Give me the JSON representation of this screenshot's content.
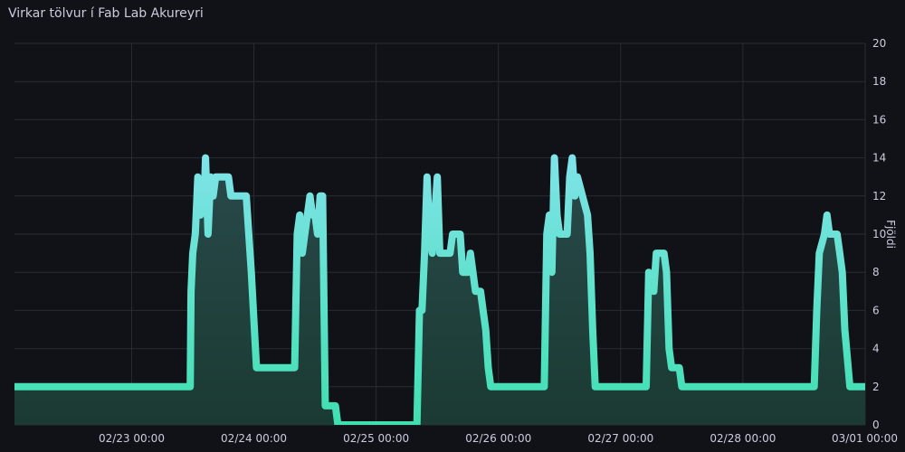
{
  "panel": {
    "title": "Virkar tölvur í Fab Lab Akureyri"
  },
  "colors": {
    "background": "#111217",
    "grid": "#2a2c33",
    "line_top": "#7fe3e8",
    "line_bottom": "#3fe0b0",
    "fill_top": "#284a4a",
    "fill_bottom": "#1b3a33"
  },
  "chart_data": {
    "type": "area",
    "ylabel": "Fjöldi",
    "ylim": [
      0,
      20
    ],
    "yticks": [
      0,
      2,
      4,
      6,
      8,
      10,
      12,
      14,
      16,
      18,
      20
    ],
    "xlim": [
      "2026-02-22T01:00",
      "2026-03-01T00:00"
    ],
    "xticks": [
      {
        "t": "2026-02-23T00:00",
        "label": "02/23 00:00"
      },
      {
        "t": "2026-02-24T00:00",
        "label": "02/24 00:00"
      },
      {
        "t": "2026-02-25T00:00",
        "label": "02/25 00:00"
      },
      {
        "t": "2026-02-26T00:00",
        "label": "02/26 00:00"
      },
      {
        "t": "2026-02-27T00:00",
        "label": "02/27 00:00"
      },
      {
        "t": "2026-02-28T00:00",
        "label": "02/28 00:00"
      },
      {
        "t": "2026-03-01T00:00",
        "label": "03/01 00:00"
      }
    ],
    "grid": true,
    "series": [
      {
        "points": [
          [
            "2026-02-22T01:00",
            2
          ],
          [
            "2026-02-23T11:30",
            2
          ],
          [
            "2026-02-23T11:40",
            7
          ],
          [
            "2026-02-23T12:00",
            9
          ],
          [
            "2026-02-23T12:30",
            10
          ],
          [
            "2026-02-23T13:00",
            13
          ],
          [
            "2026-02-23T13:30",
            11
          ],
          [
            "2026-02-23T14:15",
            12
          ],
          [
            "2026-02-23T14:30",
            14
          ],
          [
            "2026-02-23T15:00",
            10
          ],
          [
            "2026-02-23T15:30",
            13
          ],
          [
            "2026-02-23T16:00",
            12
          ],
          [
            "2026-02-23T16:30",
            13
          ],
          [
            "2026-02-23T19:00",
            13
          ],
          [
            "2026-02-23T19:30",
            12
          ],
          [
            "2026-02-23T22:30",
            12
          ],
          [
            "2026-02-23T23:00",
            10
          ],
          [
            "2026-02-23T23:30",
            8
          ],
          [
            "2026-02-24T00:30",
            3
          ],
          [
            "2026-02-24T08:00",
            3
          ],
          [
            "2026-02-24T08:30",
            10
          ],
          [
            "2026-02-24T09:00",
            11
          ],
          [
            "2026-02-24T09:30",
            9
          ],
          [
            "2026-02-24T10:00",
            10
          ],
          [
            "2026-02-24T11:00",
            12
          ],
          [
            "2026-02-24T11:30",
            11
          ],
          [
            "2026-02-24T12:00",
            11
          ],
          [
            "2026-02-24T12:30",
            10
          ],
          [
            "2026-02-24T13:00",
            12
          ],
          [
            "2026-02-24T13:30",
            12
          ],
          [
            "2026-02-24T14:00",
            1
          ],
          [
            "2026-02-24T16:00",
            1
          ],
          [
            "2026-02-24T16:30",
            0
          ],
          [
            "2026-02-25T08:00",
            0
          ],
          [
            "2026-02-25T08:30",
            6
          ],
          [
            "2026-02-25T09:00",
            6
          ],
          [
            "2026-02-25T09:30",
            9
          ],
          [
            "2026-02-25T10:00",
            13
          ],
          [
            "2026-02-25T10:30",
            10
          ],
          [
            "2026-02-25T11:00",
            9
          ],
          [
            "2026-02-25T12:00",
            13
          ],
          [
            "2026-02-25T12:30",
            9
          ],
          [
            "2026-02-25T14:30",
            9
          ],
          [
            "2026-02-25T15:00",
            10
          ],
          [
            "2026-02-25T16:30",
            10
          ],
          [
            "2026-02-25T17:00",
            8
          ],
          [
            "2026-02-25T18:00",
            8
          ],
          [
            "2026-02-25T18:30",
            9
          ],
          [
            "2026-02-25T19:30",
            7
          ],
          [
            "2026-02-25T20:30",
            7
          ],
          [
            "2026-02-25T21:00",
            6
          ],
          [
            "2026-02-25T21:30",
            5
          ],
          [
            "2026-02-25T22:00",
            3
          ],
          [
            "2026-02-25T22:30",
            2
          ],
          [
            "2026-02-26T09:00",
            2
          ],
          [
            "2026-02-26T09:30",
            10
          ],
          [
            "2026-02-26T10:00",
            11
          ],
          [
            "2026-02-26T10:30",
            8
          ],
          [
            "2026-02-26T11:00",
            14
          ],
          [
            "2026-02-26T11:30",
            11
          ],
          [
            "2026-02-26T12:00",
            10
          ],
          [
            "2026-02-26T13:30",
            10
          ],
          [
            "2026-02-26T14:00",
            13
          ],
          [
            "2026-02-26T14:30",
            14
          ],
          [
            "2026-02-26T15:00",
            12
          ],
          [
            "2026-02-26T15:30",
            13
          ],
          [
            "2026-02-26T17:30",
            11
          ],
          [
            "2026-02-26T18:00",
            9
          ],
          [
            "2026-02-26T18:30",
            5
          ],
          [
            "2026-02-26T19:00",
            2
          ],
          [
            "2026-02-27T05:00",
            2
          ],
          [
            "2026-02-27T05:30",
            8
          ],
          [
            "2026-02-27T06:30",
            7
          ],
          [
            "2026-02-27T07:00",
            9
          ],
          [
            "2026-02-27T08:30",
            9
          ],
          [
            "2026-02-27T09:00",
            8
          ],
          [
            "2026-02-27T09:30",
            4
          ],
          [
            "2026-02-27T10:00",
            3
          ],
          [
            "2026-02-27T11:30",
            3
          ],
          [
            "2026-02-27T12:00",
            2
          ],
          [
            "2026-02-28T14:00",
            2
          ],
          [
            "2026-02-28T14:30",
            6
          ],
          [
            "2026-02-28T15:00",
            9
          ],
          [
            "2026-02-28T16:00",
            10
          ],
          [
            "2026-02-28T16:30",
            11
          ],
          [
            "2026-02-28T17:00",
            10
          ],
          [
            "2026-02-28T18:30",
            10
          ],
          [
            "2026-02-28T19:00",
            9
          ],
          [
            "2026-02-28T19:30",
            8
          ],
          [
            "2026-02-28T20:00",
            5
          ],
          [
            "2026-02-28T21:00",
            2
          ],
          [
            "2026-03-01T00:00",
            2
          ]
        ]
      }
    ]
  }
}
